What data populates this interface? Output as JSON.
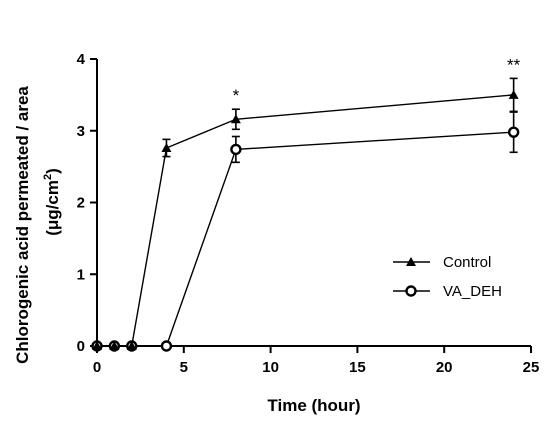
{
  "chart_data": {
    "type": "line",
    "xlabel": "Time (hour)",
    "ylabel": {
      "line1": "Chlorogenic acid permeated / area",
      "line2_prefix": "(μg/cm",
      "line2_sup": "2",
      "line2_suffix": ")"
    },
    "xlim": [
      0,
      25
    ],
    "ylim": [
      0,
      4
    ],
    "x_ticks": [
      "0",
      "5",
      "10",
      "15",
      "20",
      "25"
    ],
    "y_ticks": [
      "0",
      "1",
      "2",
      "3",
      "4"
    ],
    "legend_position": "lower-right",
    "series": [
      {
        "name": "Control",
        "marker": "filled-triangle",
        "x": [
          0,
          1,
          2,
          4,
          8,
          24
        ],
        "y": [
          0,
          0,
          0,
          2.76,
          3.16,
          3.5
        ],
        "err": [
          0,
          0,
          0,
          0.12,
          0.14,
          0.23
        ]
      },
      {
        "name": "VA_DEH",
        "marker": "open-circle",
        "x": [
          0,
          1,
          2,
          4,
          8,
          24
        ],
        "y": [
          0,
          0,
          0,
          0,
          2.74,
          2.98
        ],
        "err": [
          0,
          0,
          0,
          0,
          0.18,
          0.28
        ]
      }
    ],
    "annotations": [
      {
        "text": "*",
        "x": 8
      },
      {
        "text": "**",
        "x": 24
      }
    ]
  }
}
